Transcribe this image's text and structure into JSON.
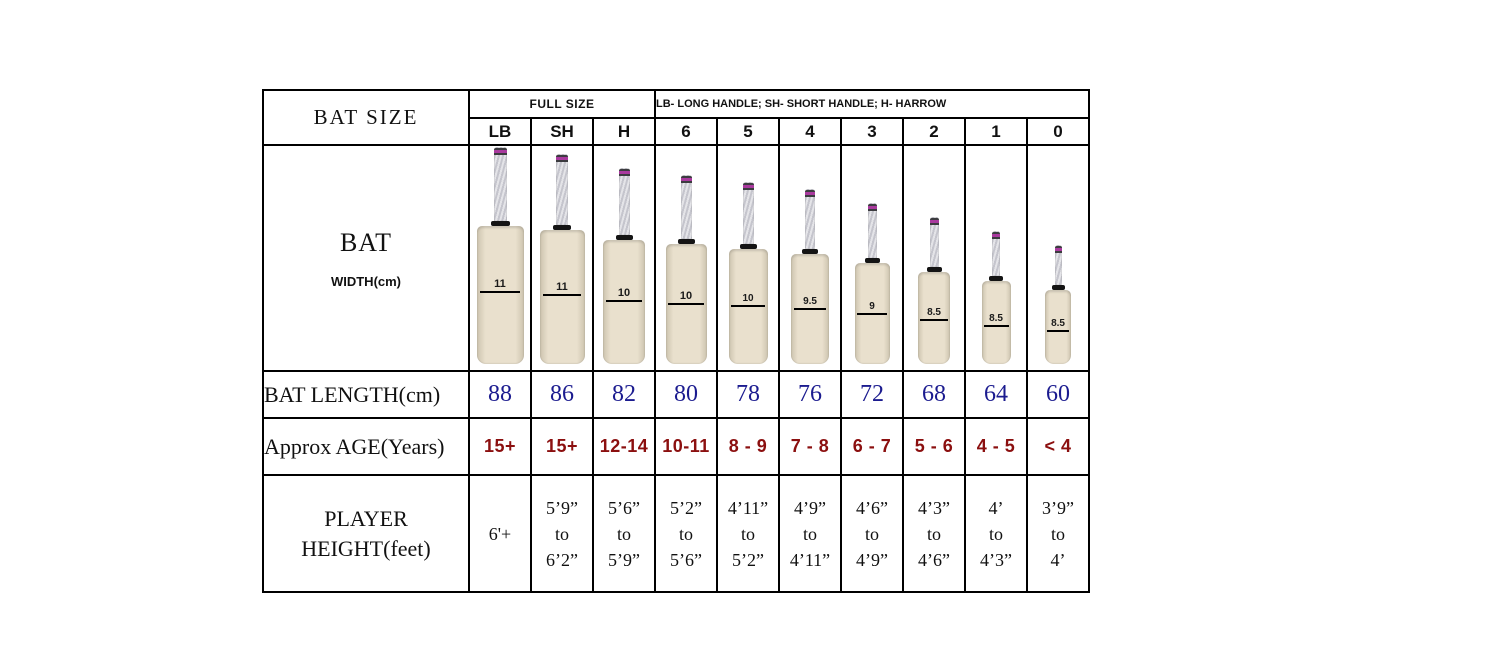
{
  "chart_data": {
    "type": "table",
    "title": "BAT SIZE",
    "group_headers": {
      "full_size": "FULL SIZE",
      "legend": "LB- LONG HANDLE; SH- SHORT HANDLE; H- HARROW"
    },
    "columns": [
      "LB",
      "SH",
      "H",
      "6",
      "5",
      "4",
      "3",
      "2",
      "1",
      "0"
    ],
    "rows": [
      {
        "label": "BAT WIDTH(cm)",
        "values": [
          "11",
          "11",
          "10",
          "10",
          "10",
          "9.5",
          "9",
          "8.5",
          "8.5",
          "8.5"
        ]
      },
      {
        "label": "BAT LENGTH(cm)",
        "values": [
          "88",
          "86",
          "82",
          "80",
          "78",
          "76",
          "72",
          "68",
          "64",
          "60"
        ]
      },
      {
        "label": "Approx AGE(Years)",
        "values": [
          "15+",
          "15+",
          "12-14",
          "10-11",
          "8 - 9",
          "7 - 8",
          "6 - 7",
          "5 - 6",
          "4 - 5",
          "< 4"
        ]
      },
      {
        "label": "PLAYER HEIGHT(feet)",
        "values": [
          "6'+",
          "5’9” to 6’2”",
          "5’6” to 5’9”",
          "5’2” to 5’6”",
          "4’11” to 5’2”",
          "4’9” to 4’11”",
          "4’6” to 4’9”",
          "4’3” to 4’6”",
          "4’ to 4’3”",
          "3’9” to 4’"
        ]
      }
    ]
  },
  "table": {
    "title": "BAT SIZE",
    "full_size_label": "FULL SIZE",
    "handle_note": "LB- LONG HANDLE; SH- SHORT HANDLE; H- HARROW",
    "sizes": [
      "LB",
      "SH",
      "H",
      "6",
      "5",
      "4",
      "3",
      "2",
      "1",
      "0"
    ],
    "width": {
      "label_main": "BAT",
      "label_sub": "WIDTH(cm)",
      "values": [
        "11",
        "11",
        "10",
        "10",
        "10",
        "9.5",
        "9",
        "8.5",
        "8.5",
        "8.5"
      ]
    },
    "length": {
      "label": "BAT LENGTH(cm)",
      "values": [
        "88",
        "86",
        "82",
        "80",
        "78",
        "76",
        "72",
        "68",
        "64",
        "60"
      ]
    },
    "age": {
      "label": "Approx AGE(Years)",
      "values": [
        "15+",
        "15+",
        "12-14",
        "10-11",
        "8 - 9",
        "7 - 8",
        "6 - 7",
        "5 - 6",
        "4 - 5",
        "< 4"
      ]
    },
    "height": {
      "label_line1": "PLAYER",
      "label_line2": "HEIGHT(feet)",
      "cells": [
        [
          "6'+"
        ],
        [
          "5’9”",
          "to",
          "6’2”"
        ],
        [
          "5’6”",
          "to",
          "5’9”"
        ],
        [
          "5’2”",
          "to",
          "5’6”"
        ],
        [
          "4’11”",
          "to",
          "5’2”"
        ],
        [
          "4’9”",
          "to",
          "4’11”"
        ],
        [
          "4’6”",
          "to",
          "4’9”"
        ],
        [
          "4’3”",
          "to",
          "4’6”"
        ],
        [
          "4’",
          "to",
          "4’3”"
        ],
        [
          "3’9”",
          "to",
          "4’"
        ]
      ]
    }
  },
  "colors": {
    "border": "#000000",
    "length_value": "#1b1b8f",
    "age_value": "#8b0f0f",
    "blade_light": "#e9e0cd",
    "blade_edge": "#cdc4af",
    "grip_band_stripe": "#a93a9e",
    "grip_band_dark": "#3c3c40",
    "collar": "#141414"
  }
}
